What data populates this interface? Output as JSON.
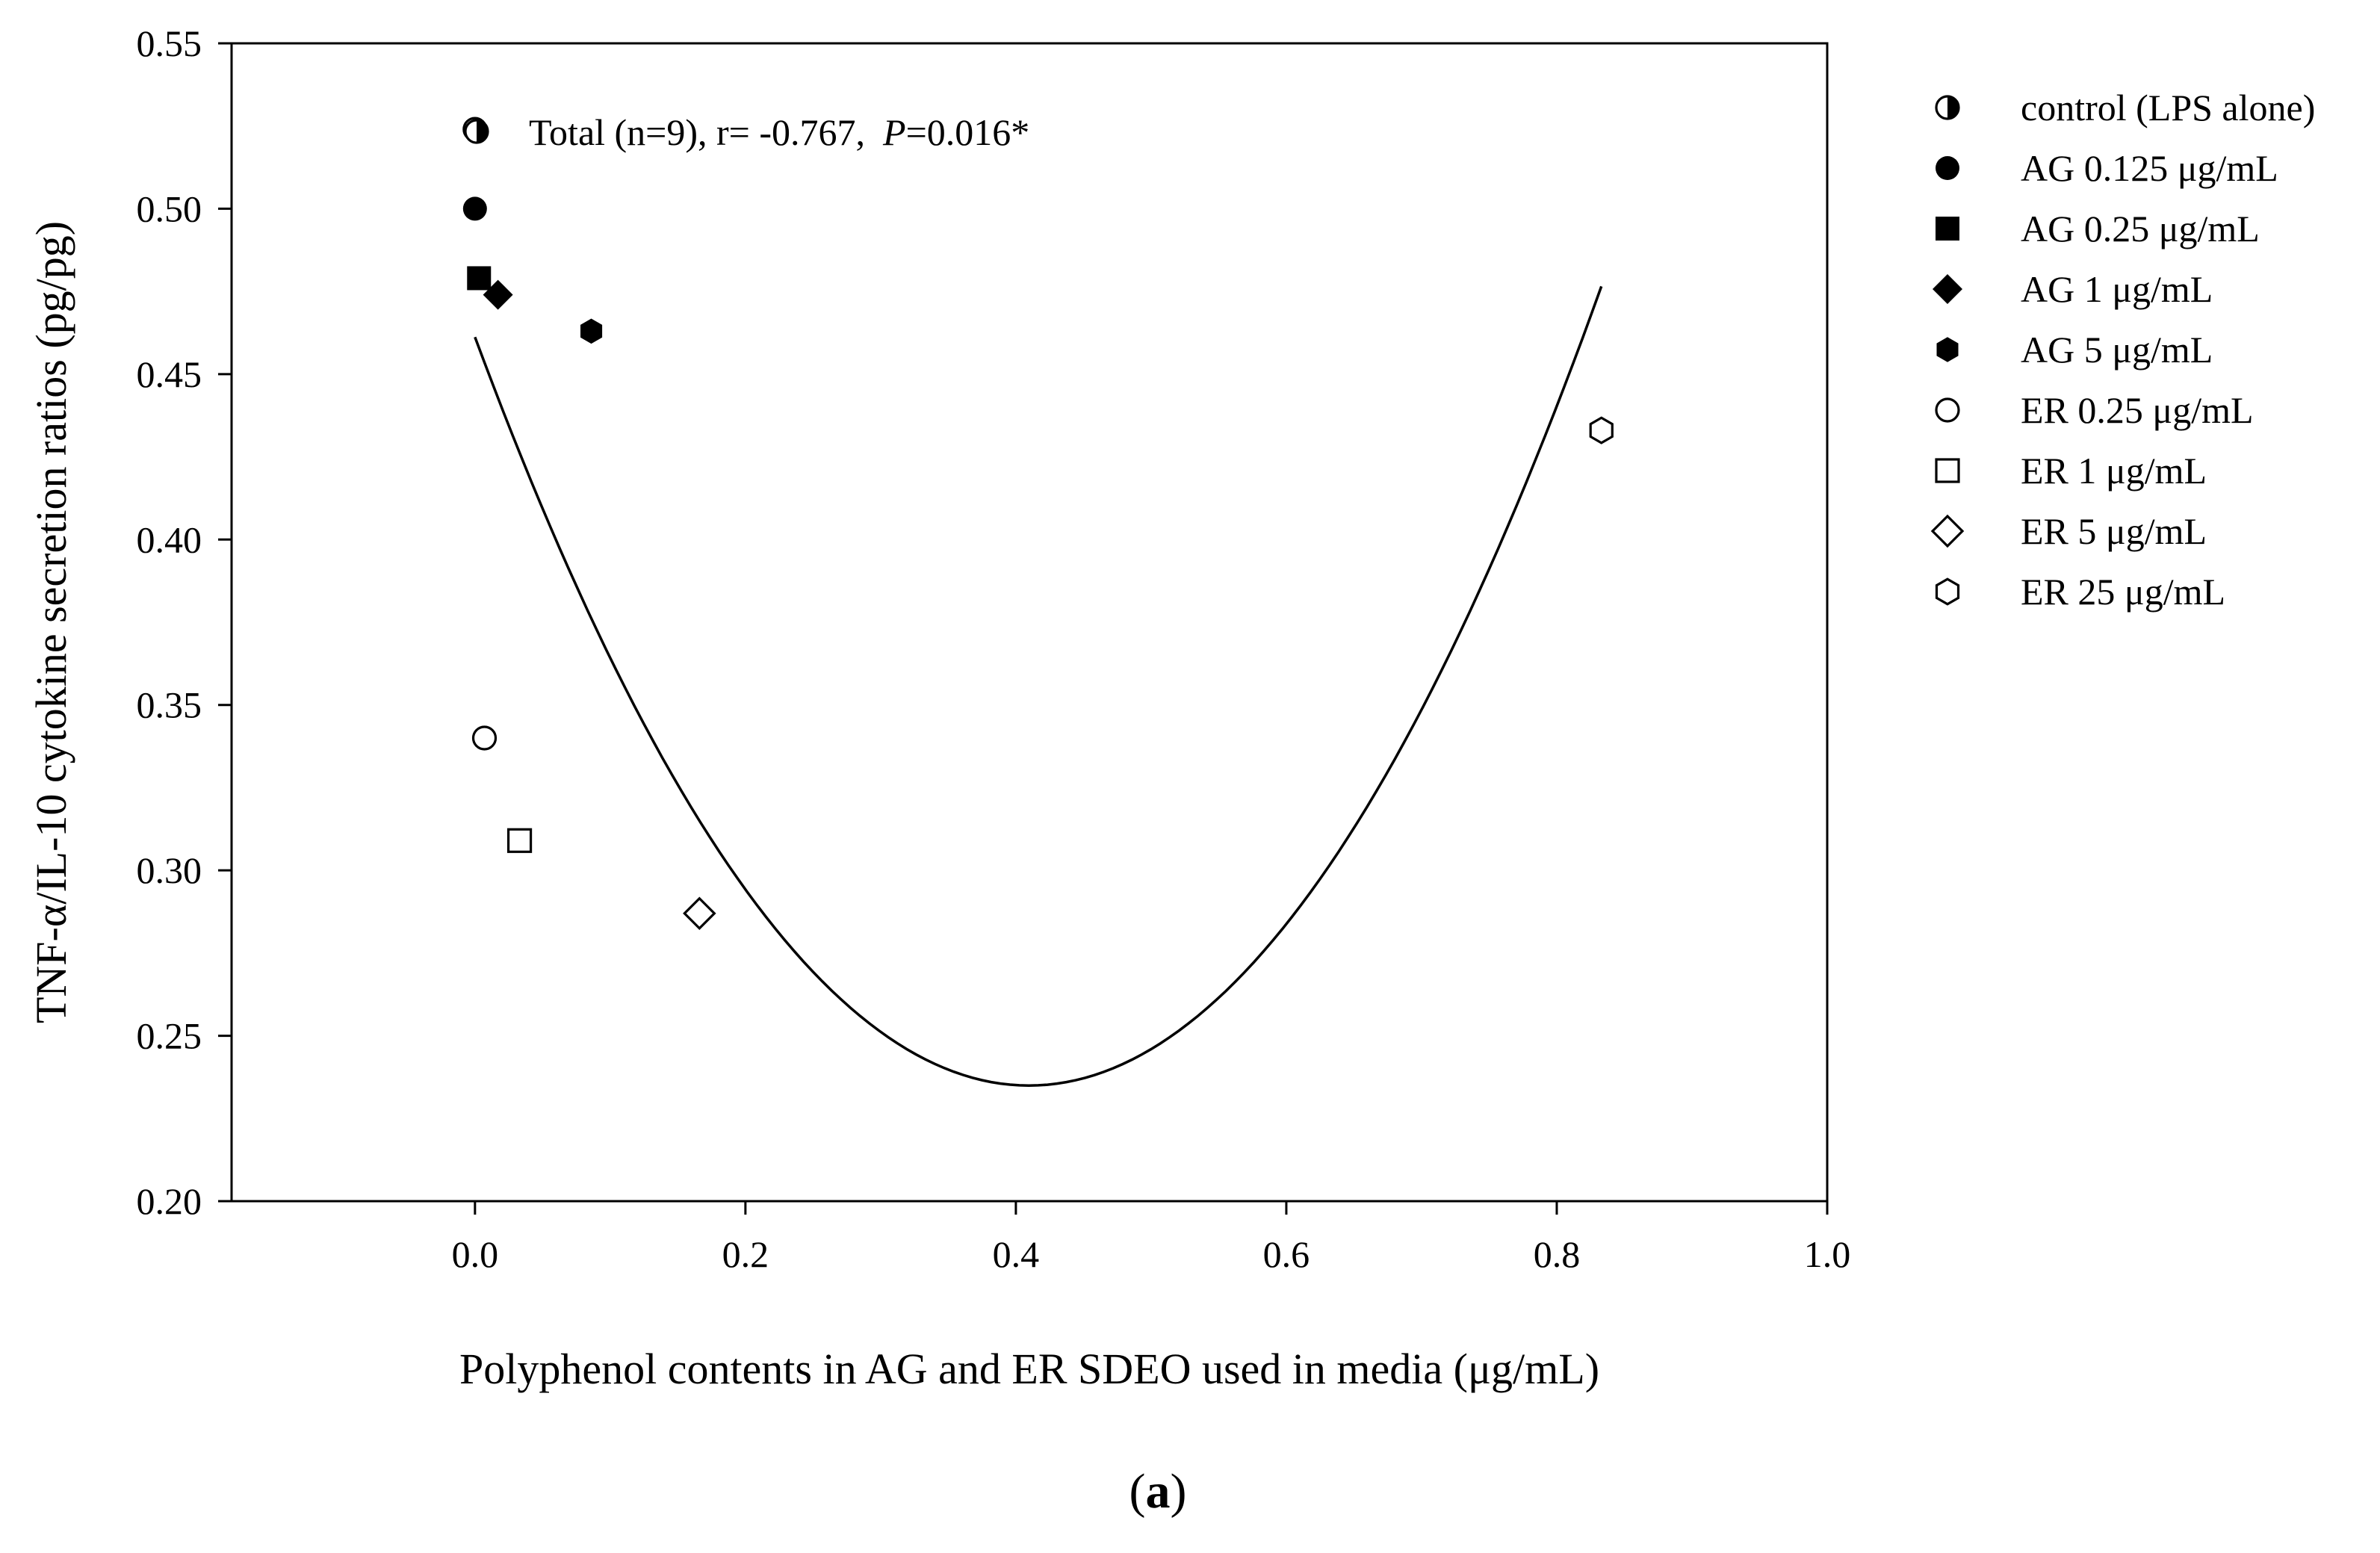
{
  "chart_data": {
    "type": "scatter",
    "ylabel": "TNF-α/IL-10 cytokine secretion ratios (pg/pg)",
    "xlabel": "Polyphenol contents in AG and ER SDEO used in media (μg/mL)",
    "xlim": [
      -0.18,
      1.0
    ],
    "ylim": [
      0.2,
      0.55
    ],
    "xticks": [
      {
        "value": 0.0,
        "label": "0.0"
      },
      {
        "value": 0.2,
        "label": "0.2"
      },
      {
        "value": 0.4,
        "label": "0.4"
      },
      {
        "value": 0.6,
        "label": "0.6"
      },
      {
        "value": 0.8,
        "label": "0.8"
      },
      {
        "value": 1.0,
        "label": "1.0"
      }
    ],
    "yticks": [
      {
        "value": 0.2,
        "label": "0.20"
      },
      {
        "value": 0.25,
        "label": "0.25"
      },
      {
        "value": 0.3,
        "label": "0.30"
      },
      {
        "value": 0.35,
        "label": "0.35"
      },
      {
        "value": 0.4,
        "label": "0.40"
      },
      {
        "value": 0.45,
        "label": "0.45"
      },
      {
        "value": 0.5,
        "label": "0.50"
      },
      {
        "value": 0.55,
        "label": "0.55"
      }
    ],
    "series": [
      {
        "name": "control (LPS alone)",
        "marker": "half-circle",
        "x": 0.0,
        "y": 0.524
      },
      {
        "name": "AG 0.125 μg/mL",
        "marker": "filled-circle",
        "x": 0.0,
        "y": 0.5
      },
      {
        "name": "AG 0.25 μg/mL",
        "marker": "filled-square",
        "x": 0.003,
        "y": 0.479
      },
      {
        "name": "AG 1 μg/mL",
        "marker": "filled-diamond",
        "x": 0.017,
        "y": 0.474
      },
      {
        "name": "AG 5 μg/mL",
        "marker": "filled-hexagon",
        "x": 0.086,
        "y": 0.463
      },
      {
        "name": "ER 0.25 μg/mL",
        "marker": "open-circle",
        "x": 0.007,
        "y": 0.34
      },
      {
        "name": "ER 1 μg/mL",
        "marker": "open-square",
        "x": 0.033,
        "y": 0.309
      },
      {
        "name": "ER 5 μg/mL",
        "marker": "open-diamond",
        "x": 0.166,
        "y": 0.287
      },
      {
        "name": "ER 25 μg/mL",
        "marker": "open-hexagon",
        "x": 0.833,
        "y": 0.433
      }
    ],
    "fit_curve": {
      "type": "quadratic",
      "coefficients": {
        "a": 1.348,
        "b": -1.1045,
        "c": 0.4612
      },
      "x_range": [
        0.0,
        0.833
      ]
    },
    "annotation": {
      "prefix": "Total (n=9), r= -0.767,",
      "p_symbol": "P",
      "p_value": "=0.016*"
    },
    "caption": {
      "open": "(",
      "letter": "a",
      "close": ")"
    },
    "legend_position": "right"
  }
}
